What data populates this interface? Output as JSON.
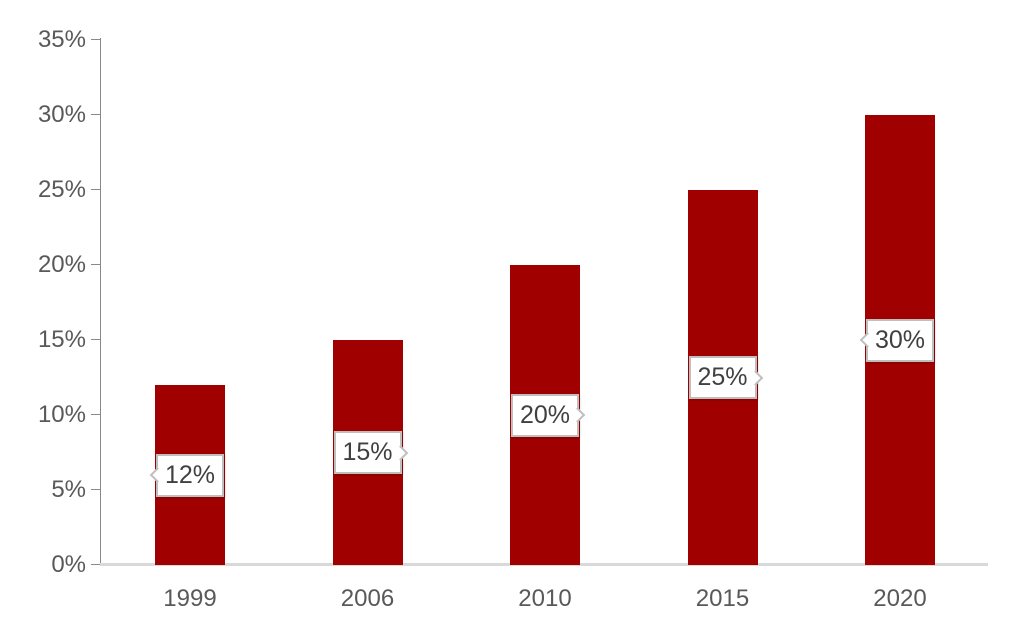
{
  "chart_data": {
    "type": "bar",
    "title": "",
    "xlabel": "",
    "ylabel": "",
    "categories": [
      "1999",
      "2006",
      "2010",
      "2015",
      "2020"
    ],
    "values": [
      12,
      15,
      20,
      25,
      30
    ],
    "data_labels": [
      "12%",
      "15%",
      "20%",
      "25%",
      "30%"
    ],
    "data_label_callout_sides": [
      "left",
      "right",
      "right",
      "right",
      "left"
    ],
    "data_label_position": "inside-center",
    "ylim": [
      0,
      35
    ],
    "ytick_step": 5,
    "ytick_labels": [
      "0%",
      "5%",
      "10%",
      "15%",
      "20%",
      "25%",
      "30%",
      "35%"
    ],
    "grid": false,
    "legend": null,
    "colors": {
      "bar": "#a00000",
      "axis_line": "#898989",
      "baseline": "#d9d9d9",
      "axis_text": "#595959",
      "data_label_text": "#404040",
      "data_label_border": "#bfbfbf",
      "data_label_bg": "#ffffff",
      "background": "#ffffff"
    }
  }
}
